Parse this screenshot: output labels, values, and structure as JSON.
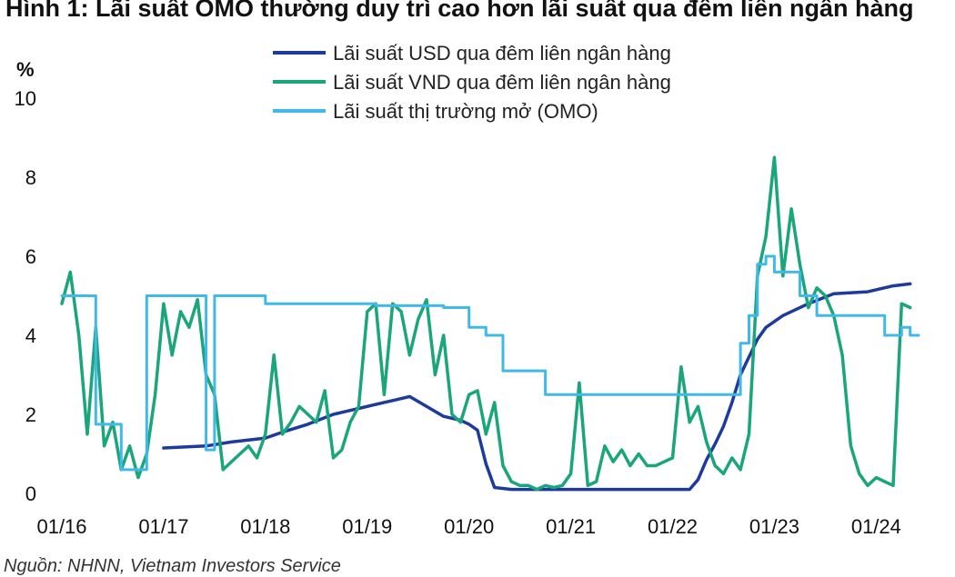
{
  "title": "Hình 1: Lãi suất OMO thường duy trì cao hơn lãi suất qua đêm liên ngân hàng",
  "source": "Nguồn: NHNN, Vietnam Investors Service",
  "chart_data": {
    "type": "line",
    "ylabel": "%",
    "ylim": [
      0,
      10
    ],
    "yticks": [
      "0",
      "2",
      "4",
      "6",
      "8",
      "10"
    ],
    "xlim": [
      "2016-01",
      "2024-06"
    ],
    "xticks": [
      "01/16",
      "01/17",
      "01/18",
      "01/19",
      "01/20",
      "01/21",
      "01/22",
      "01/23",
      "01/24"
    ],
    "grid": false,
    "legend": "top-center",
    "series": [
      {
        "name": "Lãi suất USD qua đêm liên ngân hàng",
        "color": "#1f3a9e",
        "x": [
          "2017-01",
          "2017-06",
          "2017-09",
          "2018-01",
          "2018-03",
          "2018-06",
          "2018-09",
          "2018-12",
          "2019-02",
          "2019-04",
          "2019-06",
          "2019-08",
          "2019-10",
          "2019-12",
          "2020-01",
          "2020-02",
          "2020-03",
          "2020-04",
          "2020-06",
          "2021-01",
          "2021-06",
          "2022-01",
          "2022-03",
          "2022-04",
          "2022-05",
          "2022-06",
          "2022-07",
          "2022-08",
          "2022-09",
          "2022-11",
          "2022-12",
          "2023-02",
          "2023-05",
          "2023-08",
          "2023-12",
          "2024-03",
          "2024-05"
        ],
        "values": [
          1.15,
          1.2,
          1.3,
          1.4,
          1.55,
          1.75,
          2.0,
          2.15,
          2.25,
          2.35,
          2.45,
          2.2,
          1.95,
          1.85,
          1.75,
          1.6,
          0.75,
          0.15,
          0.1,
          0.1,
          0.1,
          0.1,
          0.1,
          0.35,
          0.85,
          1.25,
          1.7,
          2.3,
          3.0,
          3.9,
          4.2,
          4.5,
          4.8,
          5.05,
          5.1,
          5.25,
          5.3
        ]
      },
      {
        "name": "Lãi suất VND qua đêm liên ngân hàng",
        "color": "#1aa67a",
        "x": [
          "2016-01",
          "2016-02",
          "2016-03",
          "2016-04",
          "2016-05",
          "2016-06",
          "2016-07",
          "2016-08",
          "2016-09",
          "2016-10",
          "2016-11",
          "2016-12",
          "2017-01",
          "2017-02",
          "2017-03",
          "2017-04",
          "2017-05",
          "2017-06",
          "2017-07",
          "2017-08",
          "2017-09",
          "2017-10",
          "2017-11",
          "2017-12",
          "2018-01",
          "2018-02",
          "2018-03",
          "2018-04",
          "2018-05",
          "2018-06",
          "2018-07",
          "2018-08",
          "2018-09",
          "2018-10",
          "2018-11",
          "2018-12",
          "2019-01",
          "2019-02",
          "2019-03",
          "2019-04",
          "2019-05",
          "2019-06",
          "2019-07",
          "2019-08",
          "2019-09",
          "2019-10",
          "2019-11",
          "2019-12",
          "2020-01",
          "2020-02",
          "2020-03",
          "2020-04",
          "2020-05",
          "2020-06",
          "2020-07",
          "2020-08",
          "2020-09",
          "2020-10",
          "2020-11",
          "2020-12",
          "2021-01",
          "2021-02",
          "2021-03",
          "2021-04",
          "2021-05",
          "2021-06",
          "2021-07",
          "2021-08",
          "2021-09",
          "2021-10",
          "2021-11",
          "2021-12",
          "2022-01",
          "2022-02",
          "2022-03",
          "2022-04",
          "2022-05",
          "2022-06",
          "2022-07",
          "2022-08",
          "2022-09",
          "2022-10",
          "2022-11",
          "2022-12",
          "2023-01",
          "2023-02",
          "2023-03",
          "2023-04",
          "2023-05",
          "2023-06",
          "2023-07",
          "2023-08",
          "2023-09",
          "2023-10",
          "2023-11",
          "2023-12",
          "2024-01",
          "2024-02",
          "2024-03",
          "2024-04",
          "2024-05"
        ],
        "values": [
          4.8,
          5.6,
          4.0,
          1.5,
          4.2,
          1.2,
          1.8,
          0.6,
          1.2,
          0.4,
          1.0,
          2.5,
          4.8,
          3.5,
          4.6,
          4.2,
          4.9,
          3.0,
          2.5,
          0.6,
          0.8,
          1.0,
          1.2,
          0.9,
          1.5,
          3.5,
          1.5,
          1.8,
          2.2,
          2.0,
          1.8,
          2.6,
          0.9,
          1.1,
          1.8,
          2.2,
          4.6,
          4.8,
          2.5,
          4.8,
          4.6,
          3.5,
          4.4,
          4.9,
          3.0,
          4.0,
          2.0,
          1.8,
          2.5,
          2.6,
          1.5,
          2.3,
          0.7,
          0.3,
          0.2,
          0.2,
          0.1,
          0.2,
          0.15,
          0.2,
          0.5,
          2.8,
          0.2,
          0.3,
          1.2,
          0.8,
          1.1,
          0.7,
          1.0,
          0.7,
          0.7,
          0.8,
          0.9,
          3.2,
          1.8,
          2.2,
          1.3,
          0.7,
          0.5,
          0.9,
          0.6,
          1.5,
          5.5,
          6.5,
          8.5,
          5.5,
          7.2,
          5.8,
          4.7,
          5.2,
          5.0,
          4.5,
          3.5,
          1.2,
          0.5,
          0.2,
          0.4,
          0.3,
          0.2,
          4.8,
          4.7
        ]
      },
      {
        "name": "Lãi suất thị trường mở (OMO)",
        "color": "#40b8ea",
        "step": true,
        "x": [
          "2016-01",
          "2016-05",
          "2016-08",
          "2016-11",
          "2017-01",
          "2017-06",
          "2017-07",
          "2018-01",
          "2019-02",
          "2019-10",
          "2020-01",
          "2020-03",
          "2020-05",
          "2020-10",
          "2022-09",
          "2022-10",
          "2022-11",
          "2022-12",
          "2023-01",
          "2023-04",
          "2023-06",
          "2023-10",
          "2024-01",
          "2024-02",
          "2024-04",
          "2024-05"
        ],
        "values": [
          5.0,
          1.75,
          0.6,
          5.0,
          5.0,
          1.1,
          5.0,
          4.8,
          4.75,
          4.7,
          4.2,
          4.0,
          3.1,
          2.5,
          3.8,
          4.5,
          5.8,
          6.0,
          5.6,
          5.0,
          4.5,
          4.5,
          4.5,
          4.0,
          4.2,
          4.0
        ]
      }
    ]
  }
}
